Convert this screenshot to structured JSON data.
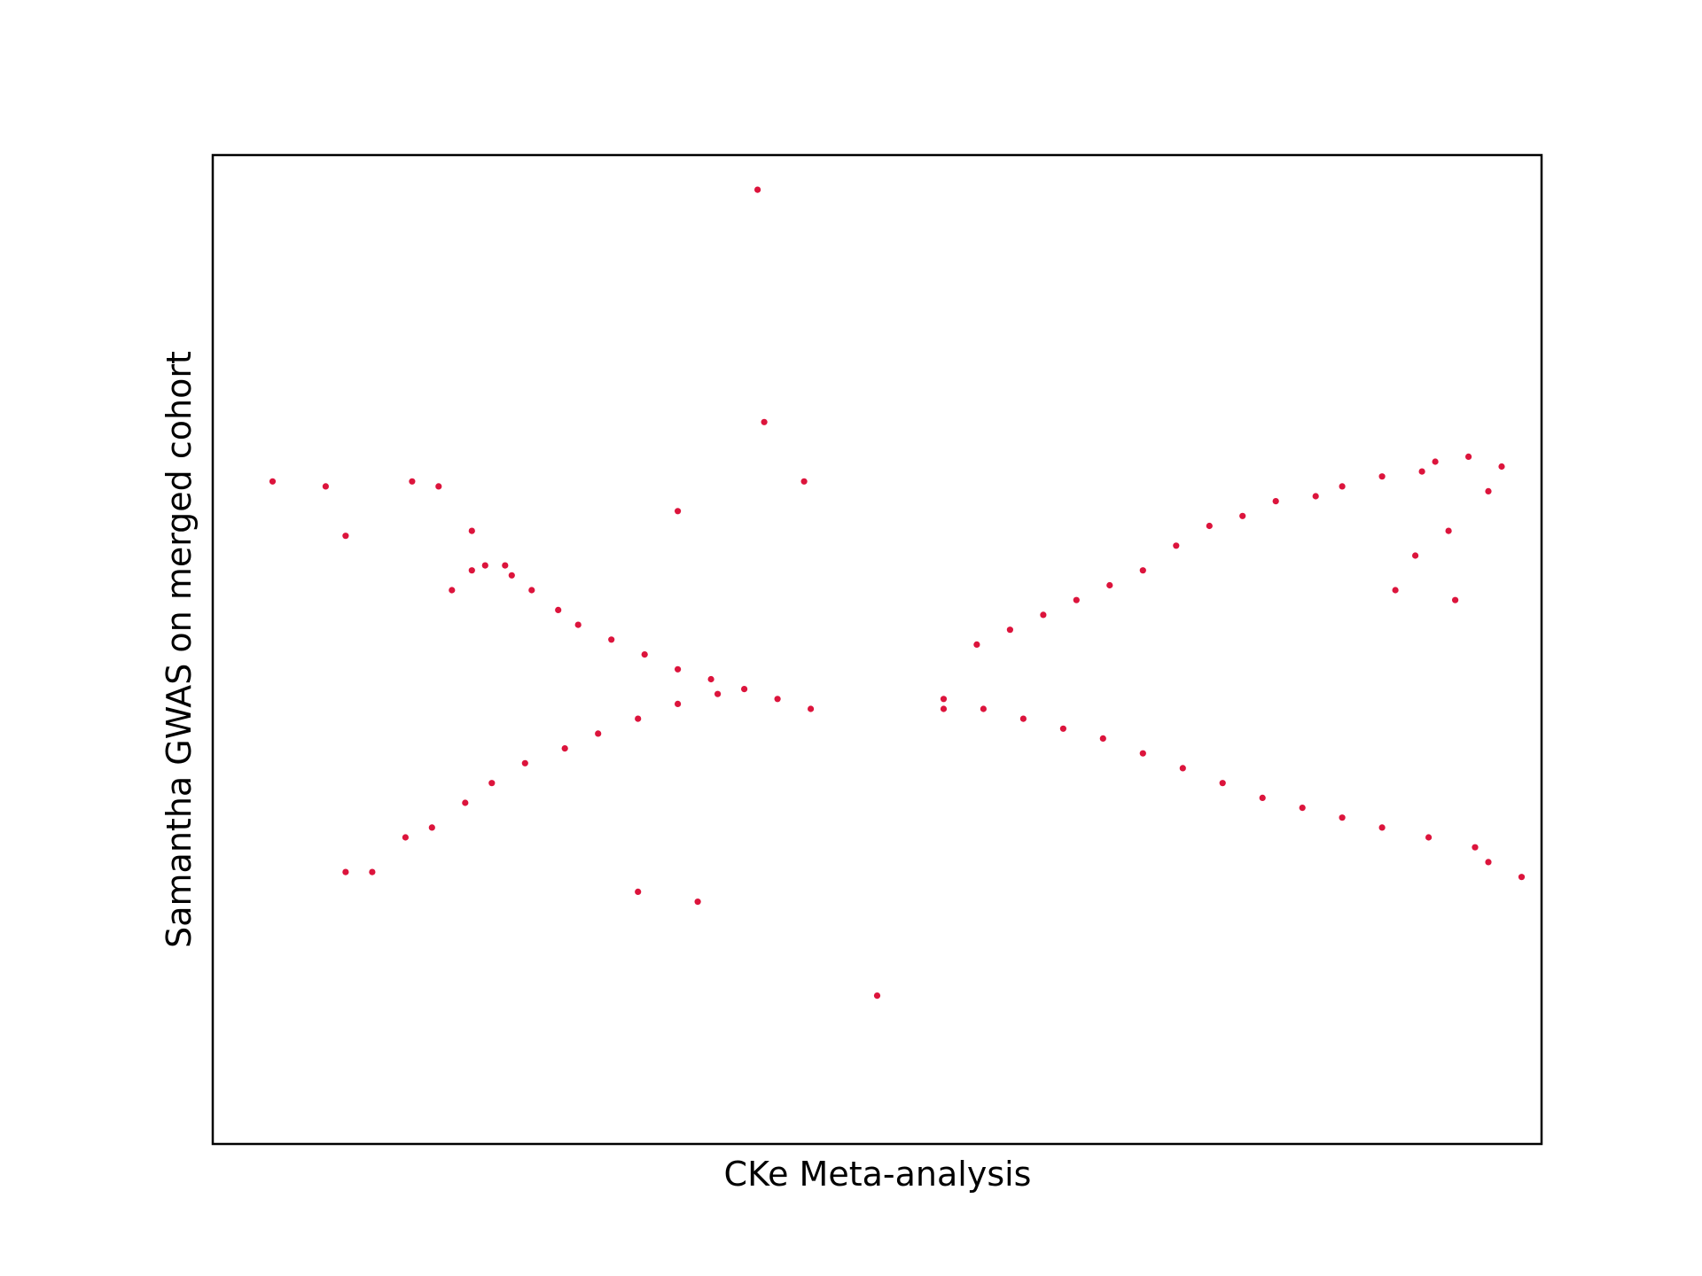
{
  "chart_data": {
    "type": "scatter",
    "xlabel": "CKe Meta-analysis",
    "ylabel": "Samantha GWAS on merged cohort",
    "xlim": [
      -1.0,
      1.0
    ],
    "ylim": [
      -1.0,
      1.0
    ],
    "x_ticks": "none",
    "y_ticks": "none",
    "grid": false,
    "legend": "none",
    "marker_color": "#DC143C",
    "series": [
      {
        "points": [
          {
            "x": -0.7,
            "y": 0.34
          },
          {
            "x": -0.66,
            "y": 0.33
          },
          {
            "x": -0.61,
            "y": 0.24
          },
          {
            "x": -0.64,
            "y": 0.12
          },
          {
            "x": -0.61,
            "y": 0.16
          },
          {
            "x": -0.59,
            "y": 0.17
          },
          {
            "x": -0.56,
            "y": 0.17
          },
          {
            "x": -0.55,
            "y": 0.15
          },
          {
            "x": -0.52,
            "y": 0.12
          },
          {
            "x": -0.48,
            "y": 0.08
          },
          {
            "x": -0.45,
            "y": 0.05
          },
          {
            "x": -0.4,
            "y": 0.02
          },
          {
            "x": -0.35,
            "y": -0.01
          },
          {
            "x": -0.3,
            "y": -0.04
          },
          {
            "x": -0.25,
            "y": -0.06
          },
          {
            "x": -0.2,
            "y": -0.08
          },
          {
            "x": -0.15,
            "y": -0.1
          },
          {
            "x": -0.1,
            "y": -0.12
          },
          {
            "x": 0.1,
            "y": -0.12
          },
          {
            "x": 0.15,
            "y": 0.01
          },
          {
            "x": 0.2,
            "y": 0.04
          },
          {
            "x": 0.25,
            "y": 0.07
          },
          {
            "x": 0.3,
            "y": 0.1
          },
          {
            "x": 0.35,
            "y": 0.13
          },
          {
            "x": 0.4,
            "y": 0.16
          },
          {
            "x": 0.45,
            "y": 0.21
          },
          {
            "x": 0.5,
            "y": 0.25
          },
          {
            "x": 0.55,
            "y": 0.27
          },
          {
            "x": 0.6,
            "y": 0.3
          },
          {
            "x": 0.66,
            "y": 0.31
          },
          {
            "x": 0.7,
            "y": 0.33
          },
          {
            "x": 0.76,
            "y": 0.35
          },
          {
            "x": 0.82,
            "y": 0.36
          },
          {
            "x": 0.84,
            "y": 0.38
          },
          {
            "x": 0.89,
            "y": 0.39
          },
          {
            "x": 0.92,
            "y": 0.32
          },
          {
            "x": 0.86,
            "y": 0.24
          },
          {
            "x": 0.81,
            "y": 0.19
          },
          {
            "x": -0.71,
            "y": -0.38
          },
          {
            "x": -0.67,
            "y": -0.36
          },
          {
            "x": -0.62,
            "y": -0.31
          },
          {
            "x": -0.58,
            "y": -0.27
          },
          {
            "x": -0.53,
            "y": -0.23
          },
          {
            "x": -0.47,
            "y": -0.2
          },
          {
            "x": -0.42,
            "y": -0.17
          },
          {
            "x": -0.36,
            "y": -0.14
          },
          {
            "x": -0.3,
            "y": -0.11
          },
          {
            "x": -0.24,
            "y": -0.09
          },
          {
            "x": 0.1,
            "y": -0.1
          },
          {
            "x": 0.16,
            "y": -0.12
          },
          {
            "x": 0.22,
            "y": -0.14
          },
          {
            "x": 0.28,
            "y": -0.16
          },
          {
            "x": 0.34,
            "y": -0.18
          },
          {
            "x": 0.4,
            "y": -0.21
          },
          {
            "x": 0.46,
            "y": -0.24
          },
          {
            "x": 0.52,
            "y": -0.27
          },
          {
            "x": 0.58,
            "y": -0.3
          },
          {
            "x": 0.64,
            "y": -0.32
          },
          {
            "x": 0.7,
            "y": -0.34
          },
          {
            "x": 0.76,
            "y": -0.36
          },
          {
            "x": 0.83,
            "y": -0.38
          },
          {
            "x": 0.9,
            "y": -0.4
          },
          {
            "x": -0.18,
            "y": 0.93
          },
          {
            "x": -0.17,
            "y": 0.46
          },
          {
            "x": -0.11,
            "y": 0.34
          },
          {
            "x": -0.3,
            "y": 0.28
          },
          {
            "x": -0.91,
            "y": 0.34
          },
          {
            "x": -0.83,
            "y": 0.33
          },
          {
            "x": -0.8,
            "y": 0.23
          },
          {
            "x": 0.94,
            "y": 0.37
          },
          {
            "x": 0.87,
            "y": 0.1
          },
          {
            "x": 0.78,
            "y": 0.12
          },
          {
            "x": -0.8,
            "y": -0.45
          },
          {
            "x": -0.76,
            "y": -0.45
          },
          {
            "x": 0.92,
            "y": -0.43
          },
          {
            "x": 0.97,
            "y": -0.46
          },
          {
            "x": -0.36,
            "y": -0.49
          },
          {
            "x": -0.27,
            "y": -0.51
          },
          {
            "x": 0.0,
            "y": -0.7
          }
        ]
      }
    ]
  }
}
